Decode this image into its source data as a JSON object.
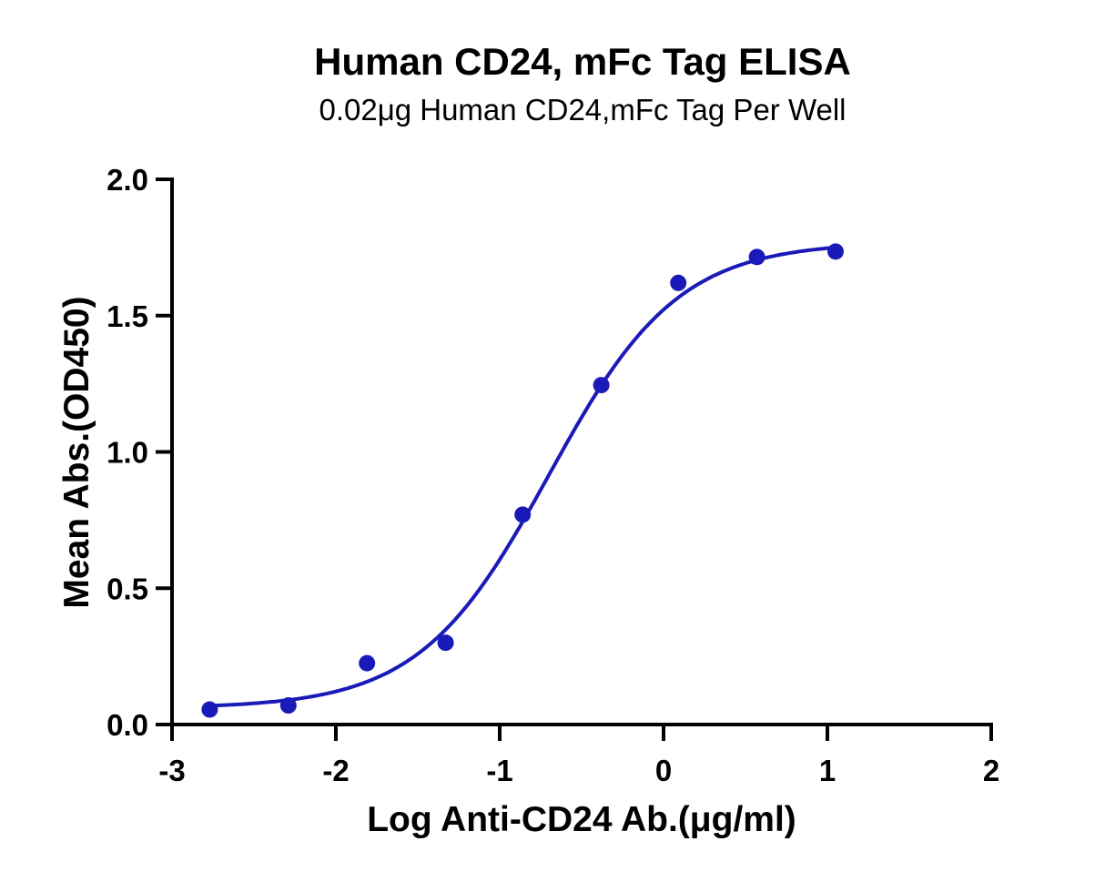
{
  "chart_data": {
    "type": "scatter",
    "title": "Human CD24, mFc Tag ELISA",
    "subtitle": "0.02μg Human CD24,mFc Tag Per Well",
    "xlabel": "Log Anti-CD24 Ab.(μg/ml)",
    "ylabel": "Mean Abs.(OD450)",
    "xlim": [
      -3,
      2
    ],
    "ylim": [
      0,
      2.0
    ],
    "x_ticks": [
      "-3",
      "-2",
      "-1",
      "0",
      "1",
      "2"
    ],
    "y_ticks": [
      "0.0",
      "0.5",
      "1.0",
      "1.5",
      "2.0"
    ],
    "grid": false,
    "series": [
      {
        "x": [
          -2.77,
          -2.29,
          -1.81,
          -1.33,
          -0.86,
          -0.38,
          0.09,
          0.57,
          1.05
        ],
        "y": [
          0.055,
          0.07,
          0.225,
          0.3,
          0.77,
          1.245,
          1.62,
          1.715,
          1.735
        ],
        "color": "#1a1ab8",
        "fit": "four-parameter logistic"
      }
    ]
  }
}
